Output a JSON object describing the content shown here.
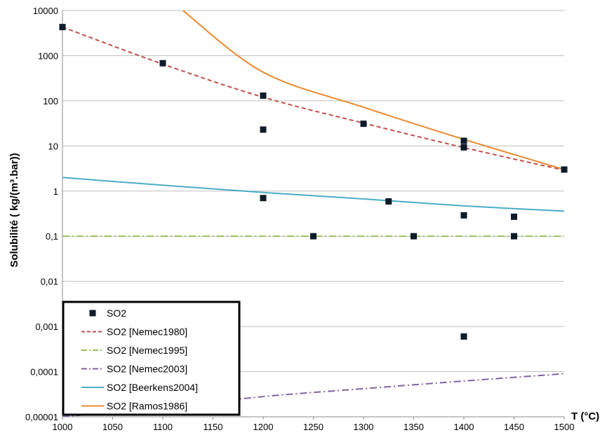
{
  "chart_data": {
    "type": "scatter",
    "xlabel": "T (°C)",
    "ylabel": "Solubilité ( kg/(m³.bar))",
    "xlim": [
      1000,
      1500
    ],
    "ylim": [
      1e-05,
      10000
    ],
    "yscale": "log",
    "x_ticks": [
      "1000",
      "1050",
      "1100",
      "1150",
      "1200",
      "1250",
      "1300",
      "1350",
      "1400",
      "1450",
      "1500"
    ],
    "y_ticks": [
      "10000",
      "1000",
      "100",
      "10",
      "1",
      "0,1",
      "0,01",
      "0,001",
      "0,0001",
      "0,00001"
    ],
    "grid": true,
    "legend_position": "bottom-left",
    "series": [
      {
        "name": "SO2",
        "kind": "markers",
        "color": "#0d1b2a",
        "points": [
          [
            1000,
            4300
          ],
          [
            1100,
            680
          ],
          [
            1200,
            130
          ],
          [
            1200,
            23
          ],
          [
            1200,
            0.7
          ],
          [
            1250,
            0.1
          ],
          [
            1300,
            31
          ],
          [
            1325,
            0.59
          ],
          [
            1350,
            0.1
          ],
          [
            1400,
            13
          ],
          [
            1400,
            9.3
          ],
          [
            1400,
            0.29
          ],
          [
            1400,
            0.0006
          ],
          [
            1450,
            0.27
          ],
          [
            1450,
            0.1
          ],
          [
            1500,
            3
          ]
        ]
      },
      {
        "name": "SO2 [Nemec1980]",
        "kind": "line",
        "dash": "dashed",
        "color": "#c0504d",
        "points": [
          [
            1000,
            4300
          ],
          [
            1100,
            650
          ],
          [
            1200,
            120
          ],
          [
            1300,
            32
          ],
          [
            1400,
            9.2
          ],
          [
            1500,
            2.9
          ]
        ]
      },
      {
        "name": "SO2 [Nemec1995]",
        "kind": "line",
        "dash": "dashdot",
        "color": "#9bbb59",
        "points": [
          [
            1000,
            0.1
          ],
          [
            1500,
            0.1
          ]
        ]
      },
      {
        "name": "SO2 [Nemec2003]",
        "kind": "line",
        "dash": "dashdot",
        "color": "#8064a2",
        "points": [
          [
            1000,
            1e-05
          ],
          [
            1100,
            1.6e-05
          ],
          [
            1200,
            2.8e-05
          ],
          [
            1300,
            4.2e-05
          ],
          [
            1400,
            6.2e-05
          ],
          [
            1500,
            9e-05
          ]
        ]
      },
      {
        "name": "SO2 [Beerkens2004]",
        "kind": "line",
        "dash": "solid",
        "color": "#4bacc6",
        "points": [
          [
            1000,
            2.0
          ],
          [
            1100,
            1.35
          ],
          [
            1200,
            0.93
          ],
          [
            1300,
            0.67
          ],
          [
            1400,
            0.47
          ],
          [
            1500,
            0.36
          ]
        ]
      },
      {
        "name": "SO2 [Ramos1986]",
        "kind": "line",
        "dash": "solid",
        "color": "#e8892f",
        "points": [
          [
            1120,
            10000
          ],
          [
            1200,
            430
          ],
          [
            1300,
            72
          ],
          [
            1400,
            14
          ],
          [
            1500,
            3
          ]
        ]
      }
    ]
  }
}
